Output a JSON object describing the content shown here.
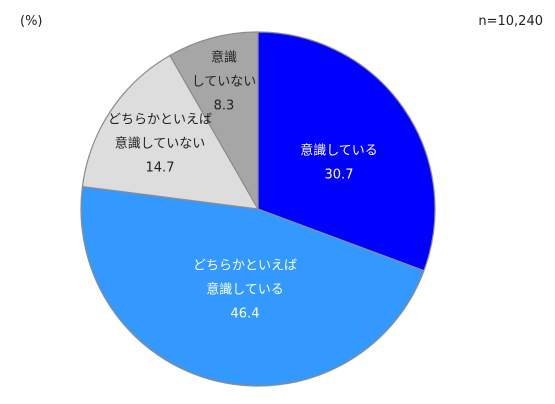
{
  "unit_label": "(%)",
  "sample_label": "n=10,240",
  "chart_data": {
    "type": "pie",
    "start_angle_deg": 0,
    "direction": "clockwise",
    "slices": [
      {
        "label_lines": [
          "意識している"
        ],
        "value": 30.7,
        "value_text": "30.7",
        "color": "#0000ff",
        "text_color": "#ffffff"
      },
      {
        "label_lines": [
          "どちらかといえば",
          "意識している"
        ],
        "value": 46.4,
        "value_text": "46.4",
        "color": "#3399ff",
        "text_color": "#ffffff"
      },
      {
        "label_lines": [
          "どちらかといえば",
          "意識していない"
        ],
        "value": 14.7,
        "value_text": "14.7",
        "color": "#dddddd",
        "text_color": "#222222"
      },
      {
        "label_lines": [
          "意識",
          "していない"
        ],
        "value": 8.3,
        "value_text": "8.3",
        "color": "#a6a6a6",
        "text_color": "#222222"
      }
    ]
  }
}
